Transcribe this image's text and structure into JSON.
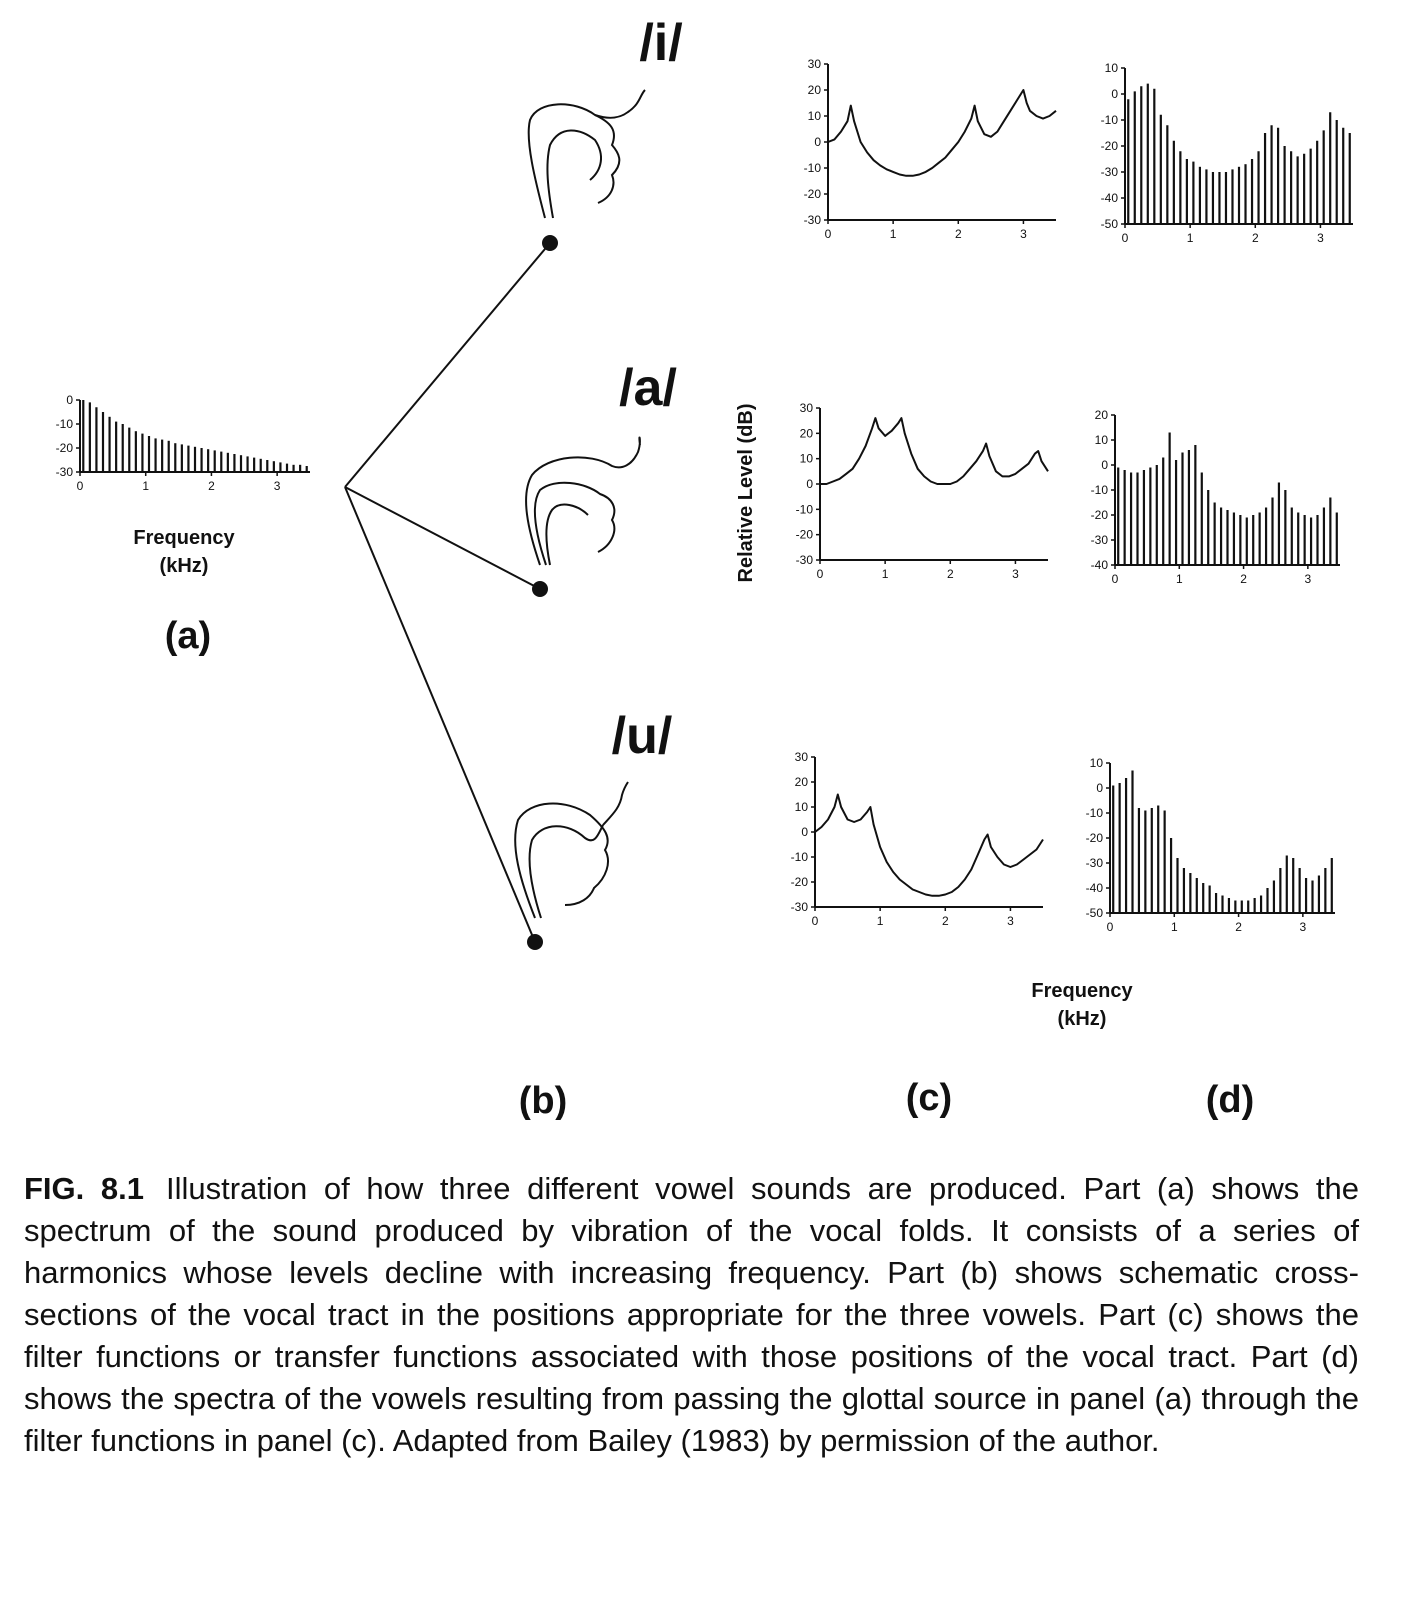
{
  "panel_labels": {
    "a": "(a)",
    "b": "(b)",
    "c": "(c)",
    "d": "(d)"
  },
  "vowels": {
    "i": "/i/",
    "a": "/a/",
    "u": "/u/"
  },
  "axis_text": {
    "frequency": "Frequency",
    "khz": "(kHz)",
    "relative_level": "Relative Level (dB)"
  },
  "caption": {
    "label": "FIG. 8.1",
    "text": "Illustration of how three different vowel sounds are produced. Part (a) shows the spectrum of the sound produced by vibration of the vocal folds. It consists of a series of harmonics whose levels decline with increasing frequency. Part (b) shows schematic cross-sections of the vocal tract in the positions appropriate for the three vowels. Part (c) shows the filter functions or transfer functions associated with those positions of the vocal tract. Part (d) shows the spectra of the vowels resulting from passing the glottal source in panel (a) through the filter functions in panel (c). Adapted from Bailey (1983) by permission of the author."
  },
  "colors": {
    "ink": "#111111",
    "background": "#ffffff"
  },
  "chart_data": [
    {
      "id": "a_source",
      "type": "bar",
      "x_ticks": [
        0,
        1,
        2,
        3
      ],
      "y_ticks": [
        "0",
        "-10",
        "-20",
        "-30"
      ],
      "ylim": [
        -30,
        0
      ],
      "xlim": [
        0,
        3.5
      ],
      "xlabel": "Frequency (kHz)",
      "x": [
        0.05,
        0.15,
        0.25,
        0.35,
        0.45,
        0.55,
        0.65,
        0.75,
        0.85,
        0.95,
        1.05,
        1.15,
        1.25,
        1.35,
        1.45,
        1.55,
        1.65,
        1.75,
        1.85,
        1.95,
        2.05,
        2.15,
        2.25,
        2.35,
        2.45,
        2.55,
        2.65,
        2.75,
        2.85,
        2.95,
        3.05,
        3.15,
        3.25,
        3.35,
        3.45
      ],
      "values": [
        0,
        -1,
        -3,
        -5,
        -7,
        -9,
        -10,
        -11.5,
        -13,
        -14,
        -15,
        -16,
        -16.5,
        -17,
        -18,
        -18.5,
        -19,
        -19.5,
        -20,
        -20.5,
        -21,
        -21.5,
        -22,
        -22.5,
        -23,
        -23.5,
        -24,
        -24.5,
        -25,
        -25.5,
        -26,
        -26.5,
        -27,
        -27,
        -27.5
      ]
    },
    {
      "id": "c_i",
      "type": "line",
      "x_ticks": [
        0,
        1,
        2,
        3
      ],
      "y_ticks": [
        "30",
        "20",
        "10",
        "0",
        "-10",
        "-20",
        "-30"
      ],
      "ylim": [
        -30,
        30
      ],
      "xlim": [
        0,
        3.5
      ],
      "x": [
        0,
        0.1,
        0.2,
        0.3,
        0.35,
        0.4,
        0.5,
        0.6,
        0.7,
        0.8,
        0.9,
        1.0,
        1.1,
        1.2,
        1.3,
        1.4,
        1.5,
        1.6,
        1.7,
        1.8,
        1.9,
        2.0,
        2.1,
        2.2,
        2.25,
        2.3,
        2.4,
        2.5,
        2.6,
        2.7,
        2.8,
        2.9,
        3.0,
        3.05,
        3.1,
        3.2,
        3.3,
        3.4,
        3.5
      ],
      "values": [
        0,
        1,
        4,
        8,
        14,
        8,
        0,
        -4,
        -7,
        -9,
        -10.5,
        -11.5,
        -12.5,
        -13,
        -13,
        -12.5,
        -11.5,
        -10,
        -8,
        -6,
        -3,
        0,
        4,
        9,
        14,
        8,
        3,
        2,
        4,
        8,
        12,
        16,
        20,
        15,
        12,
        10,
        9,
        10,
        12
      ]
    },
    {
      "id": "d_i",
      "type": "bar",
      "x_ticks": [
        0,
        1,
        2,
        3
      ],
      "y_ticks": [
        "10",
        "0",
        "-10",
        "-20",
        "-30",
        "-40",
        "-50"
      ],
      "ylim": [
        -50,
        10
      ],
      "xlim": [
        0,
        3.5
      ],
      "x": [
        0.05,
        0.15,
        0.25,
        0.35,
        0.45,
        0.55,
        0.65,
        0.75,
        0.85,
        0.95,
        1.05,
        1.15,
        1.25,
        1.35,
        1.45,
        1.55,
        1.65,
        1.75,
        1.85,
        1.95,
        2.05,
        2.15,
        2.25,
        2.35,
        2.45,
        2.55,
        2.65,
        2.75,
        2.85,
        2.95,
        3.05,
        3.15,
        3.25,
        3.35,
        3.45
      ],
      "values": [
        -2,
        1,
        3,
        4,
        2,
        -8,
        -12,
        -18,
        -22,
        -25,
        -26,
        -28,
        -29,
        -30,
        -30,
        -30,
        -29,
        -28,
        -27,
        -25,
        -22,
        -15,
        -12,
        -13,
        -20,
        -22,
        -24,
        -23,
        -21,
        -18,
        -14,
        -7,
        -10,
        -13,
        -15
      ]
    },
    {
      "id": "c_a",
      "type": "line",
      "x_ticks": [
        0,
        1,
        2,
        3
      ],
      "y_ticks": [
        "30",
        "20",
        "10",
        "0",
        "-10",
        "-20",
        "-30"
      ],
      "ylim": [
        -30,
        30
      ],
      "xlim": [
        0,
        3.5
      ],
      "xlabel": "",
      "ylabel": "Relative Level (dB)",
      "x": [
        0,
        0.1,
        0.2,
        0.3,
        0.4,
        0.5,
        0.6,
        0.7,
        0.8,
        0.85,
        0.9,
        1.0,
        1.1,
        1.2,
        1.25,
        1.3,
        1.4,
        1.5,
        1.6,
        1.7,
        1.8,
        1.9,
        2.0,
        2.1,
        2.2,
        2.3,
        2.4,
        2.5,
        2.55,
        2.6,
        2.7,
        2.8,
        2.9,
        3.0,
        3.1,
        3.2,
        3.3,
        3.35,
        3.4,
        3.5
      ],
      "values": [
        0,
        0,
        1,
        2,
        4,
        6,
        10,
        15,
        22,
        26,
        22,
        19,
        21,
        24,
        26,
        20,
        12,
        6,
        3,
        1,
        0,
        0,
        0,
        1,
        3,
        6,
        9,
        13,
        16,
        11,
        5,
        3,
        3,
        4,
        6,
        8,
        12,
        13,
        9,
        5
      ]
    },
    {
      "id": "d_a",
      "type": "bar",
      "x_ticks": [
        0,
        1,
        2,
        3
      ],
      "y_ticks": [
        "20",
        "10",
        "0",
        "-10",
        "-20",
        "-30",
        "-40"
      ],
      "ylim": [
        -40,
        20
      ],
      "xlim": [
        0,
        3.5
      ],
      "x": [
        0.05,
        0.15,
        0.25,
        0.35,
        0.45,
        0.55,
        0.65,
        0.75,
        0.85,
        0.95,
        1.05,
        1.15,
        1.25,
        1.35,
        1.45,
        1.55,
        1.65,
        1.75,
        1.85,
        1.95,
        2.05,
        2.15,
        2.25,
        2.35,
        2.45,
        2.55,
        2.65,
        2.75,
        2.85,
        2.95,
        3.05,
        3.15,
        3.25,
        3.35,
        3.45
      ],
      "values": [
        -1,
        -2,
        -3,
        -3,
        -2,
        -1,
        0,
        3,
        13,
        2,
        5,
        6,
        8,
        -3,
        -10,
        -15,
        -17,
        -18,
        -19,
        -20,
        -21,
        -20,
        -19,
        -17,
        -13,
        -7,
        -10,
        -17,
        -19,
        -20,
        -21,
        -20,
        -17,
        -13,
        -19
      ]
    },
    {
      "id": "c_u",
      "type": "line",
      "x_ticks": [
        0,
        1,
        2,
        3
      ],
      "y_ticks": [
        "30",
        "20",
        "10",
        "0",
        "-10",
        "-20",
        "-30"
      ],
      "ylim": [
        -30,
        30
      ],
      "xlim": [
        0,
        3.5
      ],
      "x": [
        0,
        0.1,
        0.2,
        0.3,
        0.35,
        0.4,
        0.5,
        0.6,
        0.7,
        0.8,
        0.85,
        0.9,
        1.0,
        1.1,
        1.2,
        1.3,
        1.4,
        1.5,
        1.6,
        1.7,
        1.8,
        1.9,
        2.0,
        2.1,
        2.2,
        2.3,
        2.4,
        2.5,
        2.6,
        2.65,
        2.7,
        2.8,
        2.9,
        3.0,
        3.1,
        3.2,
        3.3,
        3.4,
        3.5
      ],
      "values": [
        0,
        2,
        5,
        10,
        15,
        10,
        5,
        4,
        5,
        8,
        10,
        3,
        -6,
        -12,
        -16,
        -19,
        -21,
        -23,
        -24,
        -25,
        -25.5,
        -25.5,
        -25,
        -24,
        -22,
        -19,
        -15,
        -9,
        -3,
        -1,
        -6,
        -10,
        -13,
        -14,
        -13,
        -11,
        -9,
        -7,
        -3
      ]
    },
    {
      "id": "d_u",
      "type": "bar",
      "x_ticks": [
        0,
        1,
        2,
        3
      ],
      "y_ticks": [
        "10",
        "0",
        "-10",
        "-20",
        "-30",
        "-40",
        "-50"
      ],
      "ylim": [
        -50,
        10
      ],
      "xlim": [
        0,
        3.5
      ],
      "xlabel": "Frequency (kHz)",
      "x": [
        0.05,
        0.15,
        0.25,
        0.35,
        0.45,
        0.55,
        0.65,
        0.75,
        0.85,
        0.95,
        1.05,
        1.15,
        1.25,
        1.35,
        1.45,
        1.55,
        1.65,
        1.75,
        1.85,
        1.95,
        2.05,
        2.15,
        2.25,
        2.35,
        2.45,
        2.55,
        2.65,
        2.75,
        2.85,
        2.95,
        3.05,
        3.15,
        3.25,
        3.35,
        3.45
      ],
      "values": [
        1,
        2,
        4,
        7,
        -8,
        -9,
        -8,
        -7,
        -9,
        -20,
        -28,
        -32,
        -34,
        -36,
        -38,
        -39,
        -42,
        -43,
        -44,
        -45,
        -45,
        -45,
        -44,
        -43,
        -40,
        -37,
        -32,
        -27,
        -28,
        -32,
        -36,
        -37,
        -35,
        -32,
        -28
      ]
    }
  ]
}
